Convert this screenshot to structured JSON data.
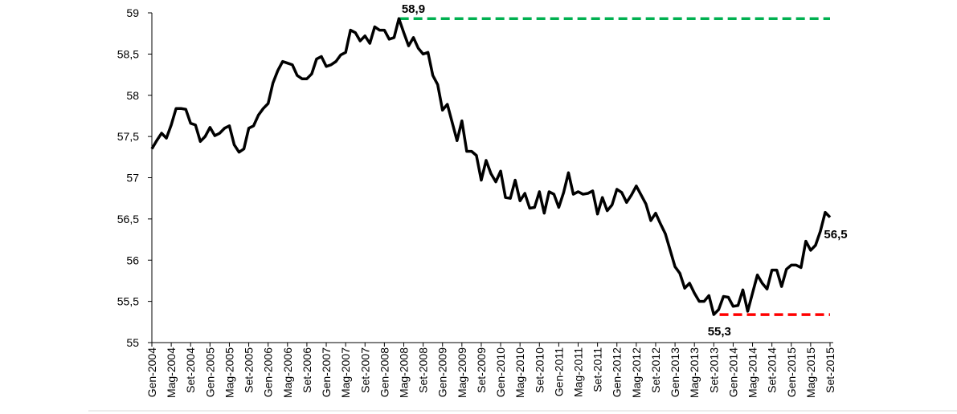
{
  "chart_data": {
    "type": "line",
    "categories": [
      "Gen-2004",
      null,
      null,
      null,
      "Mag-2004",
      null,
      null,
      null,
      "Set-2004",
      null,
      null,
      null,
      "Gen-2005",
      null,
      null,
      null,
      "Mag-2005",
      null,
      null,
      null,
      "Set-2005",
      null,
      null,
      null,
      "Gen-2006",
      null,
      null,
      null,
      "Mag-2006",
      null,
      null,
      null,
      "Set-2006",
      null,
      null,
      null,
      "Gen-2007",
      null,
      null,
      null,
      "Mag-2007",
      null,
      null,
      null,
      "Set-2007",
      null,
      null,
      null,
      "Gen-2008",
      null,
      null,
      null,
      "Mag-2008",
      null,
      null,
      null,
      "Set-2008",
      null,
      null,
      null,
      "Gen-2009",
      null,
      null,
      null,
      "Mag-2009",
      null,
      null,
      null,
      "Set-2009",
      null,
      null,
      null,
      "Gen-2010",
      null,
      null,
      null,
      "Mag-2010",
      null,
      null,
      null,
      "Set-2010",
      null,
      null,
      null,
      "Gen-2011",
      null,
      null,
      null,
      "Mag-2011",
      null,
      null,
      null,
      "Set-2011",
      null,
      null,
      null,
      "Gen-2012",
      null,
      null,
      null,
      "Mag-2012",
      null,
      null,
      null,
      "Set-2012",
      null,
      null,
      null,
      "Gen-2013",
      null,
      null,
      null,
      "Mag-2013",
      null,
      null,
      null,
      "Set-2013",
      null,
      null,
      null,
      "Gen-2014",
      null,
      null,
      null,
      "Mag-2014",
      null,
      null,
      null,
      "Set-2014",
      null,
      null,
      null,
      "Gen-2015",
      null,
      null,
      null,
      "Mag-2015",
      null,
      null,
      null,
      "Set-2015"
    ],
    "series": [
      {
        "color": "#000000",
        "values": [
          57.35,
          57.45,
          57.54,
          57.48,
          57.64,
          57.84,
          57.84,
          57.83,
          57.66,
          57.64,
          57.44,
          57.5,
          57.61,
          57.51,
          57.54,
          57.6,
          57.63,
          57.4,
          57.31,
          57.35,
          57.6,
          57.63,
          57.76,
          57.84,
          57.9,
          58.15,
          58.3,
          58.41,
          58.39,
          58.37,
          58.24,
          58.2,
          58.2,
          58.26,
          58.44,
          58.47,
          58.35,
          58.37,
          58.41,
          58.49,
          58.52,
          58.79,
          58.76,
          58.66,
          58.72,
          58.63,
          58.83,
          58.79,
          58.79,
          58.68,
          58.7,
          58.93,
          58.76,
          58.6,
          58.7,
          58.57,
          58.5,
          58.52,
          58.24,
          58.13,
          57.82,
          57.89,
          57.67,
          57.45,
          57.69,
          57.32,
          57.32,
          57.27,
          56.97,
          57.21,
          57.05,
          56.95,
          57.08,
          56.76,
          56.75,
          56.97,
          56.72,
          56.81,
          56.63,
          56.64,
          56.83,
          56.57,
          56.83,
          56.8,
          56.64,
          56.82,
          57.06,
          56.8,
          56.83,
          56.8,
          56.81,
          56.84,
          56.56,
          56.76,
          56.6,
          56.67,
          56.86,
          56.82,
          56.7,
          56.79,
          56.9,
          56.79,
          56.68,
          56.48,
          56.57,
          56.44,
          56.32,
          56.12,
          55.92,
          55.84,
          55.66,
          55.72,
          55.6,
          55.5,
          55.5,
          55.57,
          55.34,
          55.4,
          55.56,
          55.55,
          55.44,
          55.45,
          55.64,
          55.38,
          55.6,
          55.82,
          55.72,
          55.65,
          55.88,
          55.88,
          55.68,
          55.89,
          55.94,
          55.94,
          55.91,
          56.23,
          56.12,
          56.18,
          56.35,
          56.58,
          56.52
        ],
        "value_labels": [
          null,
          null,
          null,
          null,
          null,
          null,
          null,
          null,
          null,
          null,
          null,
          null,
          null,
          null,
          null,
          null,
          null,
          null,
          null,
          null,
          null,
          null,
          null,
          null,
          null,
          null,
          null,
          null,
          null,
          null,
          null,
          null,
          null,
          null,
          null,
          null,
          null,
          null,
          null,
          null,
          null,
          null,
          null,
          null,
          null,
          null,
          null,
          null,
          null,
          null,
          null,
          "58,9",
          null,
          null,
          null,
          null,
          null,
          null,
          null,
          null,
          null,
          null,
          null,
          null,
          null,
          null,
          null,
          null,
          null,
          null,
          null,
          null,
          null,
          null,
          null,
          null,
          null,
          null,
          null,
          null,
          null,
          null,
          null,
          null,
          null,
          null,
          null,
          null,
          null,
          null,
          null,
          null,
          null,
          null,
          null,
          null,
          null,
          null,
          null,
          null,
          null,
          null,
          null,
          null,
          null,
          null,
          null,
          null,
          null,
          null,
          null,
          null,
          null,
          null,
          null,
          null,
          "55,3",
          null,
          null,
          null,
          null,
          null,
          null,
          null,
          null,
          null,
          null,
          null,
          null,
          null,
          null,
          null,
          null,
          null,
          null,
          null,
          null,
          null,
          null,
          null,
          "56,5"
        ]
      }
    ],
    "reference_lines": [
      {
        "value": 58.93,
        "color": "#00b050"
      },
      {
        "value": 55.34,
        "color": "#ff0000"
      }
    ],
    "ylim": [
      55,
      59
    ],
    "yticks": [
      55,
      {
        "value": 55.5,
        "label": "55,5"
      },
      56,
      {
        "value": 56.5,
        "label": "56,5"
      },
      57,
      {
        "value": 57.5,
        "label": "57,5"
      },
      58,
      {
        "value": 58.5,
        "label": "58,5"
      },
      59
    ],
    "grid": false
  }
}
